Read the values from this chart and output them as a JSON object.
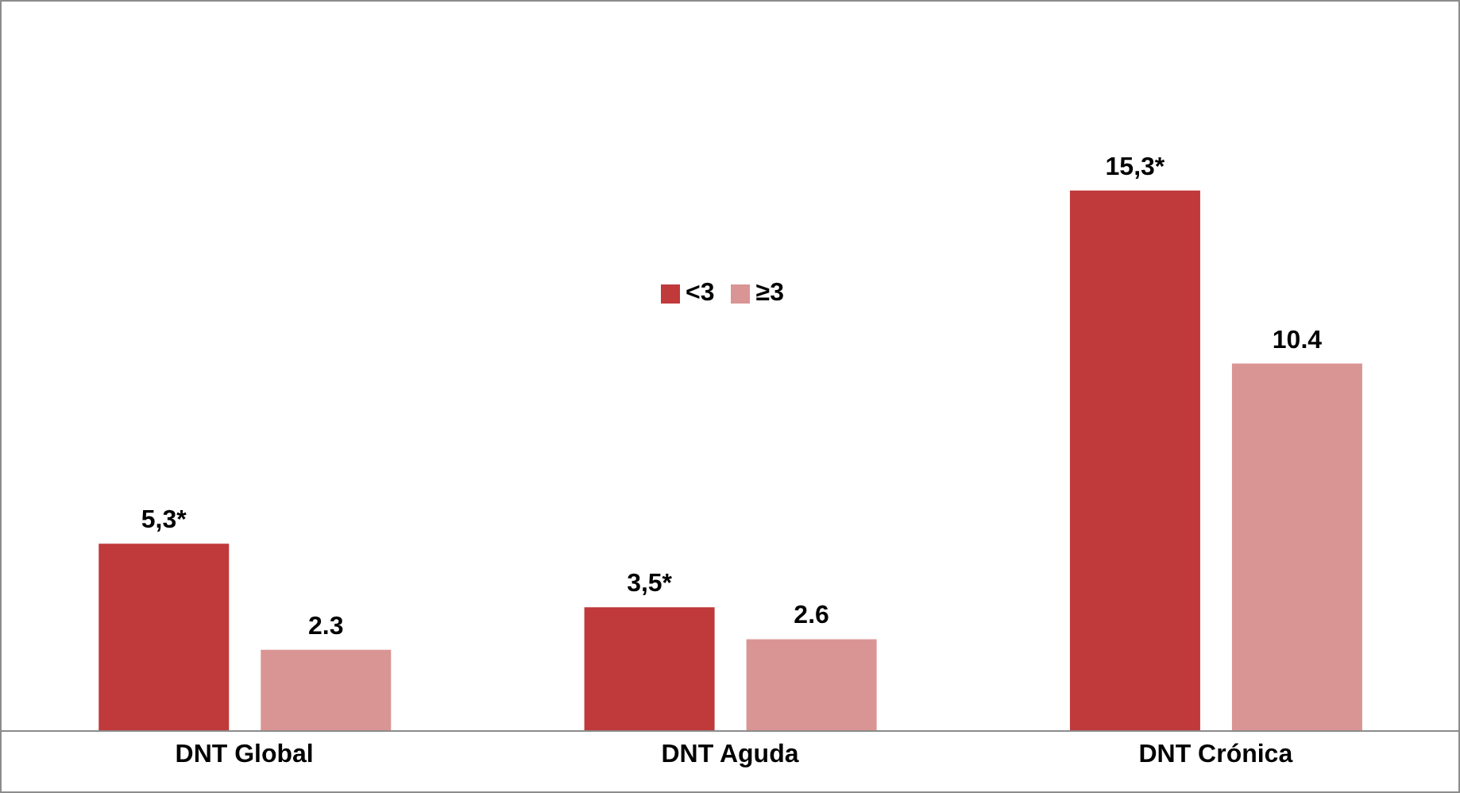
{
  "chart_data": {
    "type": "bar",
    "categories": [
      "DNT Global",
      "DNT Aguda",
      "DNT Crónica"
    ],
    "series": [
      {
        "name": "<3",
        "color": "#c0393b",
        "values": [
          5.3,
          3.5,
          15.3
        ],
        "value_labels": [
          "5,3*",
          "3,5*",
          "15,3*"
        ]
      },
      {
        "name": "≥3",
        "color": "#d99594",
        "values": [
          2.3,
          2.6,
          10.4
        ],
        "value_labels": [
          "2.3",
          "2.6",
          "10.4"
        ]
      }
    ],
    "legend": "top",
    "grid": false
  }
}
